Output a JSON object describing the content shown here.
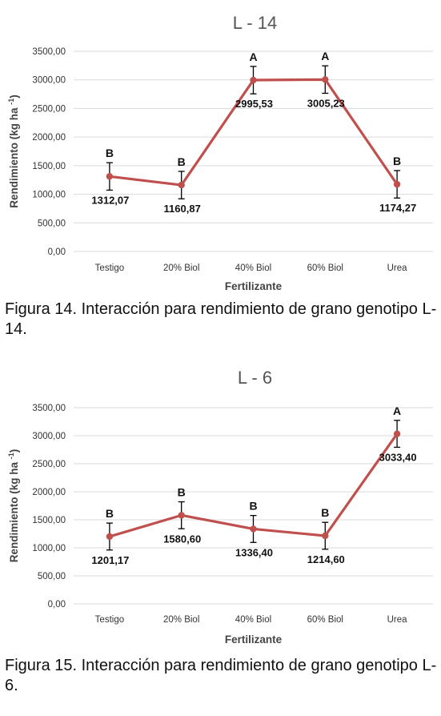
{
  "chart_data": [
    {
      "type": "line",
      "title": "L - 14",
      "xlabel": "Fertilizante",
      "ylabel": "Rendimiento (kg ha",
      "ylabel_sup": "-1",
      "ylabel_end": ")",
      "categories": [
        "Testigo",
        "20% Biol",
        "40% Biol",
        "60% Biol",
        "Urea"
      ],
      "values": [
        1312.07,
        1160.87,
        2995.53,
        3005.23,
        1174.27
      ],
      "value_labels": [
        "1312,07",
        "1160,87",
        "2995,53",
        "3005,23",
        "1174,27"
      ],
      "error": [
        240,
        240,
        240,
        240,
        240
      ],
      "letters": [
        "B",
        "B",
        "A",
        "A",
        "B"
      ],
      "ylim": [
        0,
        3500
      ],
      "yticks": [
        "0,00",
        "500,00",
        "1000,00",
        "1500,00",
        "2000,00",
        "2500,00",
        "3000,00",
        "3500,00"
      ],
      "grid": true,
      "line_color": "#c0504d",
      "caption": "Figura 14. Interacción para rendimiento de grano genotipo L-14."
    },
    {
      "type": "line",
      "title": "L - 6",
      "xlabel": "Fertilizante",
      "ylabel": "Rendimiento (kg ha",
      "ylabel_sup": "-1",
      "ylabel_end": ")",
      "categories": [
        "Testigo",
        "20% Biol",
        "40% Biol",
        "60% Biol",
        "Urea"
      ],
      "values": [
        1201.17,
        1580.6,
        1336.4,
        1214.6,
        3033.4
      ],
      "value_labels": [
        "1201,17",
        "1580,60",
        "1336,40",
        "1214,60",
        "3033,40"
      ],
      "error": [
        240,
        240,
        240,
        240,
        240
      ],
      "letters": [
        "B",
        "B",
        "B",
        "B",
        "A"
      ],
      "ylim": [
        0,
        3500
      ],
      "yticks": [
        "0,00",
        "500,00",
        "1000,00",
        "1500,00",
        "2000,00",
        "2500,00",
        "3000,00",
        "3500,00"
      ],
      "grid": true,
      "line_color": "#c0504d",
      "caption": "Figura 15. Interacción para rendimiento de grano genotipo L-6."
    }
  ]
}
